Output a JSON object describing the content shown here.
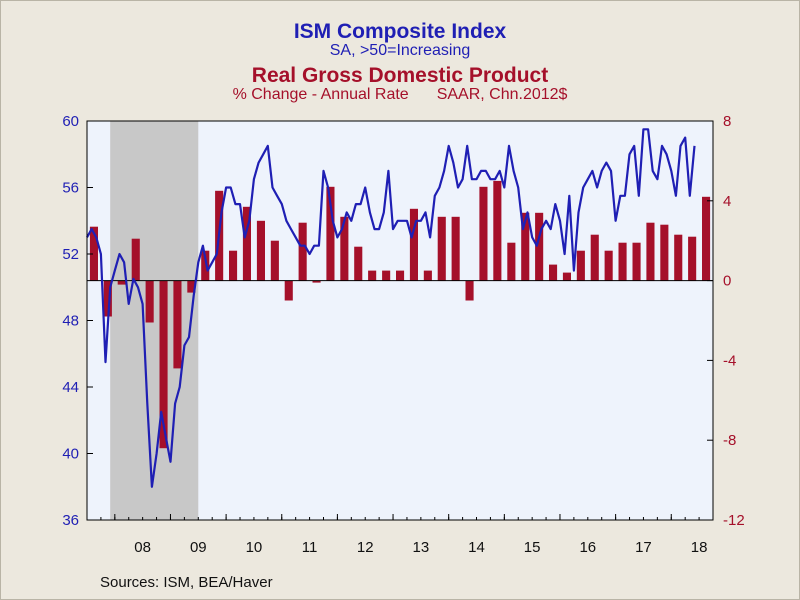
{
  "titles": {
    "line1": "ISM Composite Index",
    "line2": "SA, >50=Increasing",
    "line3": "Real Gross Domestic Product",
    "line4a": "% Change - Annual Rate",
    "line4b": "SAAR, Chn.2012$"
  },
  "sources": "Sources:  ISM, BEA/Haver",
  "colors": {
    "ism_line": "#1f1fb4",
    "gdp_bar": "#a5102a",
    "plot_bg": "#eef3fc",
    "recession": "#c8c8c8",
    "page_bg": "#ece8de"
  },
  "chart_data": {
    "type": "bar+line",
    "x_labels": [
      "08",
      "09",
      "10",
      "11",
      "12",
      "13",
      "14",
      "15",
      "16",
      "17",
      "18"
    ],
    "x_range": [
      2007.5,
      2018.75
    ],
    "left_axis": {
      "min": 36,
      "max": 60,
      "ticks": [
        36,
        40,
        44,
        48,
        52,
        56,
        60
      ],
      "series": "ISM Composite Index"
    },
    "right_axis": {
      "min": -12,
      "max": 8,
      "ticks": [
        -12,
        -8,
        -4,
        0,
        4,
        8
      ],
      "series": "Real Gross Domestic Product"
    },
    "recession": {
      "start": 2007.917,
      "end": 2009.5
    },
    "gdp_quarterly": {
      "start": 2007.5,
      "values": [
        2.7,
        -1.8,
        -0.2,
        2.1,
        -2.1,
        -8.4,
        -4.4,
        -0.6,
        1.5,
        4.5,
        1.5,
        3.7,
        3.0,
        2.0,
        -1.0,
        2.9,
        -0.1,
        4.7,
        3.2,
        1.7,
        0.5,
        0.5,
        0.5,
        3.6,
        0.5,
        3.2,
        3.2,
        -1.0,
        4.7,
        5.0,
        1.9,
        3.4,
        3.4,
        0.8,
        0.4,
        1.5,
        2.3,
        1.5,
        1.9,
        1.9,
        2.9,
        2.8,
        2.3,
        2.2,
        4.2
      ]
    },
    "ism_monthly": {
      "start": 2007.5,
      "values": [
        53.0,
        53.5,
        53.0,
        52.0,
        45.5,
        50.0,
        51.0,
        52.0,
        51.5,
        49.0,
        50.5,
        50.0,
        49.0,
        43.0,
        38.0,
        40.0,
        42.5,
        41.0,
        39.5,
        43.0,
        44.0,
        46.5,
        47.0,
        49.5,
        51.5,
        52.5,
        51.0,
        51.5,
        52.0,
        54.5,
        56.0,
        56.0,
        55.0,
        55.0,
        53.0,
        54.0,
        56.5,
        57.5,
        58.0,
        58.5,
        56.0,
        55.5,
        55.0,
        54.0,
        53.5,
        53.0,
        52.5,
        52.5,
        52.0,
        52.5,
        52.5,
        57.0,
        56.0,
        54.0,
        53.0,
        53.5,
        54.5,
        54.0,
        55.0,
        55.0,
        56.0,
        54.5,
        53.5,
        53.5,
        54.5,
        57.0,
        53.5,
        54.0,
        54.0,
        54.0,
        53.0,
        54.0,
        54.0,
        54.5,
        53.0,
        55.5,
        56.0,
        57.0,
        58.5,
        57.5,
        56.0,
        56.5,
        58.5,
        56.5,
        56.5,
        57.0,
        57.0,
        56.5,
        56.5,
        57.0,
        56.0,
        58.5,
        57.0,
        56.0,
        53.5,
        54.5,
        53.0,
        52.5,
        53.5,
        54.0,
        53.5,
        55.0,
        54.0,
        52.0,
        55.5,
        51.0,
        54.5,
        56.0,
        56.5,
        57.0,
        56.0,
        57.0,
        57.5,
        57.0,
        54.0,
        55.5,
        55.5,
        58.0,
        58.5,
        55.5,
        59.5,
        59.5,
        57.0,
        56.5,
        58.5,
        58.0,
        57.0,
        55.5,
        58.5,
        59.0,
        55.5,
        58.5
      ]
    }
  }
}
